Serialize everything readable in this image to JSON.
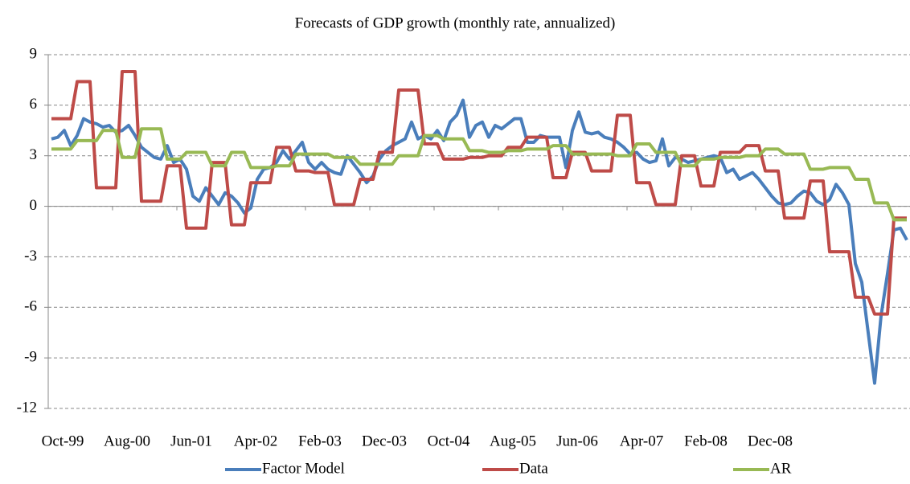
{
  "chart_data": {
    "type": "line",
    "title": "Forecasts of GDP growth (monthly rate, annualized)",
    "categories": [
      "Oct-99",
      null,
      null,
      null,
      null,
      null,
      null,
      null,
      null,
      null,
      "Aug-00",
      null,
      null,
      null,
      null,
      null,
      null,
      null,
      null,
      null,
      "Jun-01",
      null,
      null,
      null,
      null,
      null,
      null,
      null,
      null,
      null,
      "Apr-02",
      null,
      null,
      null,
      null,
      null,
      null,
      null,
      null,
      null,
      "Feb-03",
      null,
      null,
      null,
      null,
      null,
      null,
      null,
      null,
      null,
      "Dec-03",
      null,
      null,
      null,
      null,
      null,
      null,
      null,
      null,
      null,
      "Oct-04",
      null,
      null,
      null,
      null,
      null,
      null,
      null,
      null,
      null,
      "Aug-05",
      null,
      null,
      null,
      null,
      null,
      null,
      null,
      null,
      null,
      "Jun-06",
      null,
      null,
      null,
      null,
      null,
      null,
      null,
      null,
      null,
      "Apr-07",
      null,
      null,
      null,
      null,
      null,
      null,
      null,
      null,
      null,
      "Feb-08",
      null,
      null,
      null,
      null,
      null,
      null,
      null,
      null,
      null,
      "Dec-08",
      null,
      null,
      null,
      null,
      null,
      null,
      null,
      null,
      null,
      null,
      null,
      null,
      null,
      null,
      null,
      null,
      null,
      null,
      null,
      null,
      null,
      null,
      null
    ],
    "series": [
      {
        "name": "Factor Model",
        "color": "#4a7ebb",
        "values": [
          4.0,
          4.1,
          4.5,
          3.6,
          4.2,
          5.2,
          5.0,
          4.9,
          4.7,
          4.8,
          4.4,
          4.5,
          4.8,
          4.2,
          3.5,
          3.2,
          2.9,
          2.8,
          3.6,
          2.6,
          2.8,
          2.2,
          0.6,
          0.3,
          1.1,
          0.6,
          0.1,
          0.8,
          0.6,
          0.2,
          -0.4,
          -0.1,
          1.6,
          2.2,
          2.3,
          2.6,
          3.3,
          2.8,
          3.3,
          3.8,
          2.6,
          2.2,
          2.6,
          2.2,
          2.0,
          1.9,
          3.0,
          2.5,
          2.0,
          1.4,
          1.8,
          2.8,
          3.3,
          3.6,
          3.8,
          4.0,
          5.0,
          4.0,
          4.2,
          4.0,
          4.5,
          3.9,
          5.0,
          5.4,
          6.3,
          4.1,
          4.8,
          5.0,
          4.1,
          4.8,
          4.6,
          4.9,
          5.2,
          5.2,
          3.8,
          3.8,
          4.2,
          4.1,
          4.1,
          4.1,
          2.3,
          4.5,
          5.6,
          4.4,
          4.3,
          4.4,
          4.1,
          4.0,
          3.8,
          3.5,
          3.1,
          3.2,
          2.8,
          2.6,
          2.7,
          4.0,
          2.4,
          2.9,
          2.8,
          2.6,
          2.7,
          2.8,
          2.9,
          3.0,
          2.9,
          2.0,
          2.2,
          1.6,
          1.8,
          2.0,
          1.6,
          1.1,
          0.6,
          0.2,
          0.1,
          0.2,
          0.6,
          0.9,
          0.8,
          0.3,
          0.1,
          0.4,
          1.3,
          0.8,
          0.1,
          -3.4,
          -4.5,
          -7.5,
          -10.5,
          -6.5,
          -4.0,
          -1.4,
          -1.3,
          -2.0
        ]
      },
      {
        "name": "Data",
        "color": "#be4b48",
        "values": [
          5.2,
          5.2,
          5.2,
          5.2,
          7.4,
          7.4,
          7.4,
          1.1,
          1.1,
          1.1,
          1.1,
          8.0,
          8.0,
          8.0,
          0.3,
          0.3,
          0.3,
          0.3,
          2.4,
          2.4,
          2.4,
          -1.3,
          -1.3,
          -1.3,
          -1.3,
          2.6,
          2.6,
          2.6,
          -1.1,
          -1.1,
          -1.1,
          1.4,
          1.4,
          1.4,
          1.4,
          3.5,
          3.5,
          3.5,
          2.1,
          2.1,
          2.1,
          2.0,
          2.0,
          2.0,
          0.1,
          0.1,
          0.1,
          0.1,
          1.6,
          1.6,
          1.6,
          3.2,
          3.2,
          3.2,
          6.9,
          6.9,
          6.9,
          6.9,
          3.7,
          3.7,
          3.7,
          2.8,
          2.8,
          2.8,
          2.8,
          2.9,
          2.9,
          2.9,
          3.0,
          3.0,
          3.0,
          3.5,
          3.5,
          3.5,
          4.1,
          4.1,
          4.1,
          4.1,
          1.7,
          1.7,
          1.7,
          3.2,
          3.2,
          3.2,
          2.1,
          2.1,
          2.1,
          2.1,
          5.4,
          5.4,
          5.4,
          1.4,
          1.4,
          1.4,
          0.1,
          0.1,
          0.1,
          0.1,
          3.0,
          3.0,
          3.0,
          1.2,
          1.2,
          1.2,
          3.2,
          3.2,
          3.2,
          3.2,
          3.6,
          3.6,
          3.6,
          2.1,
          2.1,
          2.1,
          -0.7,
          -0.7,
          -0.7,
          -0.7,
          1.5,
          1.5,
          1.5,
          -2.7,
          -2.7,
          -2.7,
          -2.7,
          -5.4,
          -5.4,
          -5.4,
          -6.4,
          -6.4,
          -6.4,
          -0.7,
          -0.7,
          -0.7
        ]
      },
      {
        "name": "AR",
        "color": "#98b954",
        "values": [
          3.4,
          3.4,
          3.4,
          3.4,
          3.9,
          3.9,
          3.9,
          3.9,
          4.5,
          4.5,
          4.5,
          2.9,
          2.9,
          2.9,
          4.6,
          4.6,
          4.6,
          4.6,
          2.8,
          2.8,
          2.8,
          3.2,
          3.2,
          3.2,
          3.2,
          2.4,
          2.4,
          2.4,
          3.2,
          3.2,
          3.2,
          2.3,
          2.3,
          2.3,
          2.3,
          2.4,
          2.4,
          2.4,
          3.1,
          3.1,
          3.1,
          3.1,
          3.1,
          3.1,
          2.9,
          2.9,
          2.9,
          2.9,
          2.5,
          2.5,
          2.5,
          2.5,
          2.5,
          2.5,
          3.0,
          3.0,
          3.0,
          3.0,
          4.2,
          4.2,
          4.2,
          4.0,
          4.0,
          4.0,
          4.0,
          3.3,
          3.3,
          3.3,
          3.2,
          3.2,
          3.2,
          3.3,
          3.3,
          3.3,
          3.4,
          3.4,
          3.4,
          3.4,
          3.6,
          3.6,
          3.6,
          3.1,
          3.1,
          3.1,
          3.1,
          3.1,
          3.1,
          3.1,
          3.0,
          3.0,
          3.0,
          3.7,
          3.7,
          3.7,
          3.2,
          3.2,
          3.2,
          3.2,
          2.4,
          2.4,
          2.4,
          2.8,
          2.8,
          2.8,
          2.9,
          2.9,
          2.9,
          2.9,
          3.0,
          3.0,
          3.0,
          3.4,
          3.4,
          3.4,
          3.1,
          3.1,
          3.1,
          3.1,
          2.2,
          2.2,
          2.2,
          2.3,
          2.3,
          2.3,
          2.3,
          1.6,
          1.6,
          1.6,
          0.2,
          0.2,
          0.2,
          -0.8,
          -0.8,
          -0.8
        ]
      }
    ],
    "ylim": [
      -12,
      9
    ],
    "yticks": [
      9,
      6,
      3,
      0,
      -3,
      -6,
      -9,
      -12
    ],
    "grid": true,
    "legend": "bottom"
  }
}
